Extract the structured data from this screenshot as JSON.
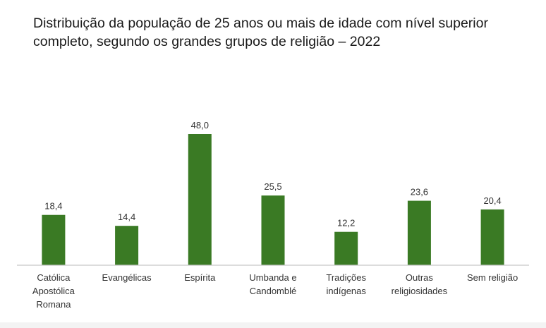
{
  "chart_data": {
    "type": "bar",
    "title": "Distribuição da população de 25 anos ou mais de idade com nível superior completo, segundo os grandes grupos de religião – 2022",
    "categories": [
      [
        "Católica",
        "Apostólica",
        "Romana"
      ],
      [
        "Evangélicas"
      ],
      [
        "Espírita"
      ],
      [
        "Umbanda e",
        "Candomblé"
      ],
      [
        "Tradições",
        "indígenas"
      ],
      [
        "Outras",
        "religiosidades"
      ],
      [
        "Sem religião"
      ]
    ],
    "values": [
      18.4,
      14.4,
      48.0,
      25.5,
      12.2,
      23.6,
      20.4
    ],
    "value_labels": [
      "18,4",
      "14,4",
      "48,0",
      "25,5",
      "12,2",
      "23,6",
      "20,4"
    ],
    "xlabel": "",
    "ylabel": "",
    "ylim": [
      0,
      48.0
    ],
    "grid": false,
    "legend": "none",
    "colors": {
      "bar": "#3a7a24",
      "axis": "#c8c8c8",
      "label": "#333333"
    }
  }
}
